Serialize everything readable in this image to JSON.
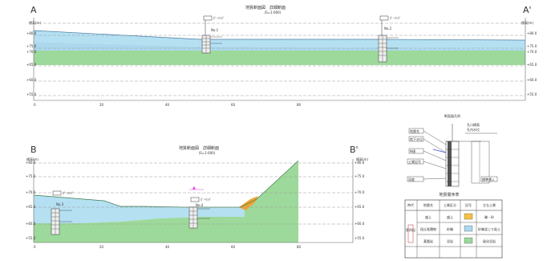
{
  "section_a": {
    "label_left": "A",
    "label_right": "A'",
    "title": "地質断面図　詳細断面",
    "scale": "(S=1:600)",
    "elev_header_left": "標高(m)",
    "elev_header_right": "標高(m)",
    "elev_labels_left": [
      "+80.0",
      "+75.0",
      "+70.0",
      "+65.0",
      "+60.0",
      "+55.0"
    ],
    "elev_labels_right": [
      "+80.0",
      "+75.0",
      "+70.0",
      "+65.0",
      "+60.0",
      "+55.0"
    ],
    "distance_labels": [
      "0",
      "20",
      "40",
      "60",
      "80"
    ],
    "boreholes": [
      {
        "name": "No.1",
        "tag": "ﾎﾞｰﾘﾝｸﾞ"
      },
      {
        "name": "No.2",
        "tag": "ﾎﾞｰﾘﾝｸﾞ"
      }
    ]
  },
  "section_b": {
    "label_left": "B",
    "label_right": "B'",
    "title": "地質断面図　詳細断面",
    "scale": "(S=1:600)",
    "elev_header_left": "標高(m)",
    "elev_header_right": "標高(m)",
    "elev_labels_left": [
      "+80.0",
      "+75.0",
      "+70.0",
      "+65.0",
      "+60.0",
      "+55.0"
    ],
    "elev_labels_right": [
      "+80.0",
      "+75.0",
      "+70.0",
      "+65.0",
      "+60.0",
      "+55.0"
    ],
    "distance_labels": [
      "0",
      "20",
      "40",
      "60",
      "80"
    ],
    "boreholes": [
      {
        "name": "No.3",
        "tag": "ﾎﾞｰﾘﾝｸﾞ"
      },
      {
        "name": "No.4",
        "tag": "ﾎﾞｰﾘﾝｸﾞ"
      }
    ],
    "marker": "▲"
  },
  "legend_example": {
    "title": "断面図凡例",
    "labels_left": [
      "地層名",
      "地下水位",
      "N値",
      "土質記号",
      "深度"
    ],
    "labels_right": [
      "孔口標高",
      "孔内水位",
      "標準貫入"
    ]
  },
  "legend_table": {
    "title": "地質層序表",
    "headers": [
      "時代",
      "地層名",
      "土質区分",
      "記号",
      "主な土質"
    ],
    "rows": [
      {
        "era": "",
        "name": "盛土",
        "soil": "盛土",
        "color": "#f5c242",
        "note": "礫・砂"
      },
      {
        "era": "第四紀",
        "name": "段丘堆積物",
        "soil": "砂礫",
        "color": "#a9d8ef",
        "note": "砂礫混じり粘土"
      },
      {
        "era": "",
        "name": "基盤岩",
        "soil": "泥岩",
        "color": "#9bd89b",
        "note": "風化泥岩"
      }
    ]
  },
  "colors": {
    "fill_layer": "#b4e0f2",
    "aquifer_layer": "#acd8ee",
    "base_layer": "#9dd99a",
    "accent_orange": "#f0a436",
    "accent_magenta": "#e040e0",
    "grid_dash": "#999999"
  }
}
